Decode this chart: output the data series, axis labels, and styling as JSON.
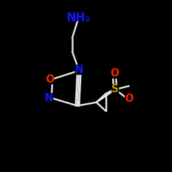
{
  "background_color": "#000000",
  "bond_color": "#e8e8e8",
  "bond_width": 1.8,
  "atom_colors": {
    "N": "#1414ff",
    "O": "#ff2000",
    "S": "#b8900a",
    "C": "#e8e8e8",
    "NH2": "#1414ff"
  },
  "font_size_atom": 10.5,
  "font_size_nh2": 12
}
